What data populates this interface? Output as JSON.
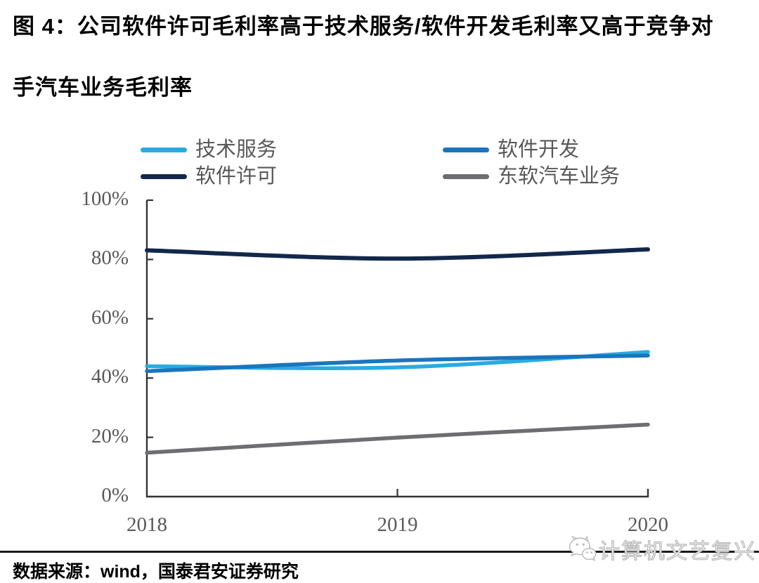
{
  "title_lines": [
    "图 4：公司软件许可毛利率高于技术服务/软件开发毛利率又高于竞争对",
    "手汽车业务毛利率"
  ],
  "source_line": "数据来源：wind，国泰君安证券研究",
  "watermark": {
    "text": "计算机文艺复兴"
  },
  "colors": {
    "axis": "#333333",
    "tick_label": "#595959",
    "legend_label": "#595959",
    "divider": "#1a1a1a",
    "watermark": "#b9b9b9"
  },
  "chart_data": {
    "type": "line",
    "title": "",
    "xlabel": "",
    "ylabel": "",
    "categories": [
      "2018",
      "2019",
      "2020"
    ],
    "series": [
      {
        "name": "技术服务",
        "color": "#29ABE2",
        "values": [
          44.0,
          43.6,
          48.8
        ]
      },
      {
        "name": "软件开发",
        "color": "#1B75BC",
        "values": [
          42.3,
          45.9,
          47.6
        ]
      },
      {
        "name": "软件许可",
        "color": "#12284B",
        "values": [
          83.1,
          80.3,
          83.4
        ]
      },
      {
        "name": "东软汽车业务",
        "color": "#6D6E71",
        "values": [
          14.8,
          19.9,
          24.3
        ]
      }
    ],
    "ylim": [
      0,
      100
    ],
    "y_ticks": [
      {
        "value": 0,
        "label": "0%"
      },
      {
        "value": 20,
        "label": "20%"
      },
      {
        "value": 40,
        "label": "40%"
      },
      {
        "value": 60,
        "label": "60%"
      },
      {
        "value": 80,
        "label": "80%"
      },
      {
        "value": 100,
        "label": "100%"
      }
    ],
    "grid": false,
    "smooth": true,
    "legend_position": "top",
    "legend_order": [
      0,
      1,
      2,
      3
    ]
  }
}
